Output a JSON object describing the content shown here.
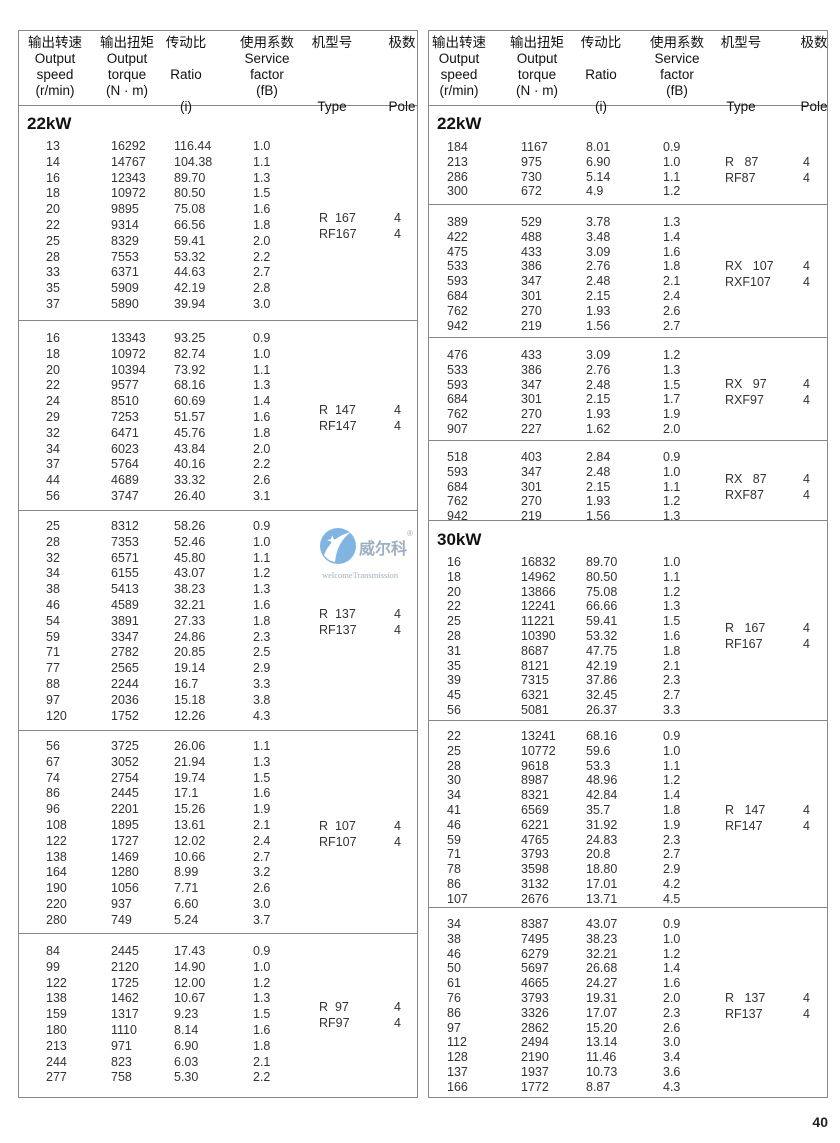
{
  "header": {
    "speed": {
      "cn": "输出转速",
      "en": [
        "Output",
        "speed",
        "(r/min)"
      ]
    },
    "torque": {
      "cn": "输出扭矩",
      "en": [
        "Output",
        "torque",
        "(N · m)"
      ]
    },
    "ratio": {
      "cn": "传动比",
      "en": [
        "Ratio",
        "(i)"
      ]
    },
    "service_factor": {
      "cn": "使用系数",
      "en": [
        "Service",
        "factor",
        "(fB)"
      ]
    },
    "type": {
      "cn": "机型号",
      "en": [
        "Type"
      ]
    },
    "pole": {
      "cn": "极数",
      "en": [
        "Pole"
      ]
    }
  },
  "tables": [
    {
      "groups": [
        {
          "power": "22kW",
          "type": [
            "R  167",
            "RF167"
          ],
          "pole": [
            "4",
            "4"
          ],
          "rows": [
            [
              "13",
              "16292",
              "116.44",
              "1.0"
            ],
            [
              "14",
              "14767",
              "104.38",
              "1.1"
            ],
            [
              "16",
              "12343",
              "89.70",
              "1.3"
            ],
            [
              "18",
              "10972",
              "80.50",
              "1.5"
            ],
            [
              "20",
              "9895",
              "75.08",
              "1.6"
            ],
            [
              "22",
              "9314",
              "66.56",
              "1.8"
            ],
            [
              "25",
              "8329",
              "59.41",
              "2.0"
            ],
            [
              "28",
              "7553",
              "53.32",
              "2.2"
            ],
            [
              "33",
              "6371",
              "44.63",
              "2.7"
            ],
            [
              "35",
              "5909",
              "42.19",
              "2.8"
            ],
            [
              "37",
              "5890",
              "39.94",
              "3.0"
            ]
          ]
        },
        {
          "type": [
            "R  147",
            "RF147"
          ],
          "pole": [
            "4",
            "4"
          ],
          "rows": [
            [
              "16",
              "13343",
              "93.25",
              "0.9"
            ],
            [
              "18",
              "10972",
              "82.74",
              "1.0"
            ],
            [
              "20",
              "10394",
              "73.92",
              "1.1"
            ],
            [
              "22",
              "9577",
              "68.16",
              "1.3"
            ],
            [
              "24",
              "8510",
              "60.69",
              "1.4"
            ],
            [
              "29",
              "7253",
              "51.57",
              "1.6"
            ],
            [
              "32",
              "6471",
              "45.76",
              "1.8"
            ],
            [
              "34",
              "6023",
              "43.84",
              "2.0"
            ],
            [
              "37",
              "5764",
              "40.16",
              "2.2"
            ],
            [
              "44",
              "4689",
              "33.32",
              "2.6"
            ],
            [
              "56",
              "3747",
              "26.40",
              "3.1"
            ]
          ]
        },
        {
          "type": [
            "R  137",
            "RF137"
          ],
          "pole": [
            "4",
            "4"
          ],
          "rows": [
            [
              "25",
              "8312",
              "58.26",
              "0.9"
            ],
            [
              "28",
              "7353",
              "52.46",
              "1.0"
            ],
            [
              "32",
              "6571",
              "45.80",
              "1.1"
            ],
            [
              "34",
              "6155",
              "43.07",
              "1.2"
            ],
            [
              "38",
              "5413",
              "38.23",
              "1.3"
            ],
            [
              "46",
              "4589",
              "32.21",
              "1.6"
            ],
            [
              "54",
              "3891",
              "27.33",
              "1.8"
            ],
            [
              "59",
              "3347",
              "24.86",
              "2.3"
            ],
            [
              "71",
              "2782",
              "20.85",
              "2.5"
            ],
            [
              "77",
              "2565",
              "19.14",
              "2.9"
            ],
            [
              "88",
              "2244",
              "16.7",
              "3.3"
            ],
            [
              "97",
              "2036",
              "15.18",
              "3.8"
            ],
            [
              "120",
              "1752",
              "12.26",
              "4.3"
            ]
          ]
        },
        {
          "type": [
            "R  107",
            "RF107"
          ],
          "pole": [
            "4",
            "4"
          ],
          "rows": [
            [
              "56",
              "3725",
              "26.06",
              "1.1"
            ],
            [
              "67",
              "3052",
              "21.94",
              "1.3"
            ],
            [
              "74",
              "2754",
              "19.74",
              "1.5"
            ],
            [
              "86",
              "2445",
              "17.1",
              "1.6"
            ],
            [
              "96",
              "2201",
              "15.26",
              "1.9"
            ],
            [
              "108",
              "1895",
              "13.61",
              "2.1"
            ],
            [
              "122",
              "1727",
              "12.02",
              "2.4"
            ],
            [
              "138",
              "1469",
              "10.66",
              "2.7"
            ],
            [
              "164",
              "1280",
              "8.99",
              "3.2"
            ],
            [
              "190",
              "1056",
              "7.71",
              "2.6"
            ],
            [
              "220",
              "937",
              "6.60",
              "3.0"
            ],
            [
              "280",
              "749",
              "5.24",
              "3.7"
            ]
          ]
        },
        {
          "type": [
            "R  97",
            "RF97"
          ],
          "pole": [
            "4",
            "4"
          ],
          "rows": [
            [
              "84",
              "2445",
              "17.43",
              "0.9"
            ],
            [
              "99",
              "2120",
              "14.90",
              "1.0"
            ],
            [
              "122",
              "1725",
              "12.00",
              "1.2"
            ],
            [
              "138",
              "1462",
              "10.67",
              "1.3"
            ],
            [
              "159",
              "1317",
              "9.23",
              "1.5"
            ],
            [
              "180",
              "1110",
              "8.14",
              "1.6"
            ],
            [
              "213",
              "971",
              "6.90",
              "1.8"
            ],
            [
              "244",
              "823",
              "6.03",
              "2.1"
            ],
            [
              "277",
              "758",
              "5.30",
              "2.2"
            ]
          ]
        }
      ]
    },
    {
      "groups": [
        {
          "power": "22kW",
          "type": [
            "R   87",
            "RF87"
          ],
          "pole": [
            "4",
            "4"
          ],
          "rows": [
            [
              "184",
              "1167",
              "8.01",
              "0.9"
            ],
            [
              "213",
              "975",
              "6.90",
              "1.0"
            ],
            [
              "286",
              "730",
              "5.14",
              "1.1"
            ],
            [
              "300",
              "672",
              "4.9",
              "1.2"
            ]
          ]
        },
        {
          "type": [
            "RX   107",
            "RXF107"
          ],
          "pole": [
            "4",
            "4"
          ],
          "rows": [
            [
              "389",
              "529",
              "3.78",
              "1.3"
            ],
            [
              "422",
              "488",
              "3.48",
              "1.4"
            ],
            [
              "475",
              "433",
              "3.09",
              "1.6"
            ],
            [
              "533",
              "386",
              "2.76",
              "1.8"
            ],
            [
              "593",
              "347",
              "2.48",
              "2.1"
            ],
            [
              "684",
              "301",
              "2.15",
              "2.4"
            ],
            [
              "762",
              "270",
              "1.93",
              "2.6"
            ],
            [
              "942",
              "219",
              "1.56",
              "2.7"
            ]
          ]
        },
        {
          "type": [
            "RX   97",
            "RXF97"
          ],
          "pole": [
            "4",
            "4"
          ],
          "rows": [
            [
              "476",
              "433",
              "3.09",
              "1.2"
            ],
            [
              "533",
              "386",
              "2.76",
              "1.3"
            ],
            [
              "593",
              "347",
              "2.48",
              "1.5"
            ],
            [
              "684",
              "301",
              "2.15",
              "1.7"
            ],
            [
              "762",
              "270",
              "1.93",
              "1.9"
            ],
            [
              "907",
              "227",
              "1.62",
              "2.0"
            ]
          ]
        },
        {
          "type": [
            "RX   87",
            "RXF87"
          ],
          "pole": [
            "4",
            "4"
          ],
          "rows": [
            [
              "518",
              "403",
              "2.84",
              "0.9"
            ],
            [
              "593",
              "347",
              "2.48",
              "1.0"
            ],
            [
              "684",
              "301",
              "2.15",
              "1.1"
            ],
            [
              "762",
              "270",
              "1.93",
              "1.2"
            ],
            [
              "942",
              "219",
              "1.56",
              "1.3"
            ]
          ]
        },
        {
          "power": "30kW",
          "type": [
            "R   167",
            "RF167"
          ],
          "pole": [
            "4",
            "4"
          ],
          "rows": [
            [
              "16",
              "16832",
              "89.70",
              "1.0"
            ],
            [
              "18",
              "14962",
              "80.50",
              "1.1"
            ],
            [
              "20",
              "13866",
              "75.08",
              "1.2"
            ],
            [
              "22",
              "12241",
              "66.66",
              "1.3"
            ],
            [
              "25",
              "11221",
              "59.41",
              "1.5"
            ],
            [
              "28",
              "10390",
              "53.32",
              "1.6"
            ],
            [
              "31",
              "8687",
              "47.75",
              "1.8"
            ],
            [
              "35",
              "8121",
              "42.19",
              "2.1"
            ],
            [
              "39",
              "7315",
              "37.86",
              "2.3"
            ],
            [
              "45",
              "6321",
              "32.45",
              "2.7"
            ],
            [
              "56",
              "5081",
              "26.37",
              "3.3"
            ]
          ]
        },
        {
          "type": [
            "R   147",
            "RF147"
          ],
          "pole": [
            "4",
            "4"
          ],
          "rows": [
            [
              "22",
              "13241",
              "68.16",
              "0.9"
            ],
            [
              "25",
              "10772",
              "59.6",
              "1.0"
            ],
            [
              "28",
              "9618",
              "53.3",
              "1.1"
            ],
            [
              "30",
              "8987",
              "48.96",
              "1.2"
            ],
            [
              "34",
              "8321",
              "42.84",
              "1.4"
            ],
            [
              "41",
              "6569",
              "35.7",
              "1.8"
            ],
            [
              "46",
              "6221",
              "31.92",
              "1.9"
            ],
            [
              "59",
              "4765",
              "24.83",
              "2.3"
            ],
            [
              "71",
              "3793",
              "20.8",
              "2.7"
            ],
            [
              "78",
              "3598",
              "18.80",
              "2.9"
            ],
            [
              "86",
              "3132",
              "17.01",
              "4.2"
            ],
            [
              "107",
              "2676",
              "13.71",
              "4.5"
            ]
          ]
        },
        {
          "type": [
            "R   137",
            "RF137"
          ],
          "pole": [
            "4",
            "4"
          ],
          "rows": [
            [
              "34",
              "8387",
              "43.07",
              "0.9"
            ],
            [
              "38",
              "7495",
              "38.23",
              "1.0"
            ],
            [
              "46",
              "6279",
              "32.21",
              "1.2"
            ],
            [
              "50",
              "5697",
              "26.68",
              "1.4"
            ],
            [
              "61",
              "4665",
              "24.27",
              "1.6"
            ],
            [
              "76",
              "3793",
              "19.31",
              "2.0"
            ],
            [
              "86",
              "3326",
              "17.07",
              "2.3"
            ],
            [
              "97",
              "2862",
              "15.20",
              "2.6"
            ],
            [
              "112",
              "2494",
              "13.14",
              "3.0"
            ],
            [
              "128",
              "2190",
              "11.46",
              "3.4"
            ],
            [
              "137",
              "1937",
              "10.73",
              "3.6"
            ],
            [
              "166",
              "1772",
              "8.87",
              "4.3"
            ]
          ]
        }
      ]
    }
  ],
  "watermark": {
    "brand_cn": "威尔科",
    "brand_en": "welcomeTransmission",
    "mark": "®",
    "colors": {
      "circle": "#5b9bd5",
      "text": "#8ea2b8"
    }
  },
  "page_number": "40"
}
